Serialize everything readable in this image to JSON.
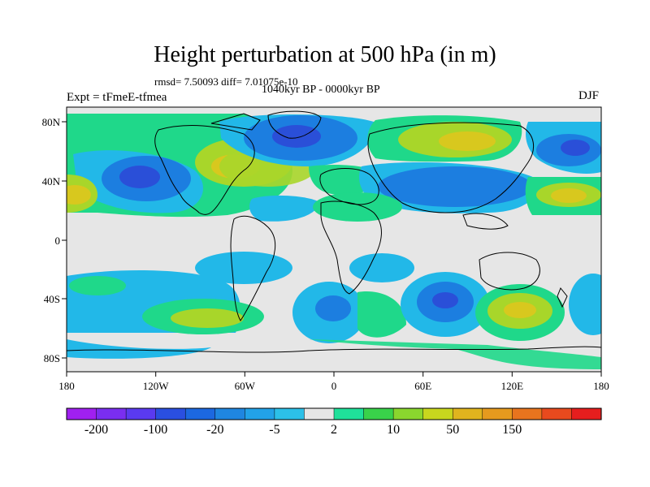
{
  "title": "Height perturbation at 500 hPa (in m)",
  "stats": "rmsd= 7.50093 diff= 7.01075e-10",
  "period": "1040kyr BP - 0000kyr BP",
  "experiment": "Expt = tFmeE-tfmea",
  "season": "DJF",
  "map": {
    "lat_ticks": [
      "80N",
      "40N",
      "0",
      "40S",
      "80S"
    ],
    "lon_ticks": [
      "180",
      "120W",
      "60W",
      "0",
      "60E",
      "120E",
      "180"
    ]
  },
  "colorbar": {
    "labels": [
      "-200",
      "-100",
      "-20",
      "-5",
      "2",
      "10",
      "50",
      "150"
    ],
    "colors": [
      "#a020f0",
      "#7a2ef0",
      "#5a3af0",
      "#2a4fe0",
      "#1c68e0",
      "#1f86e0",
      "#22a2e8",
      "#2cc0e8",
      "#e6e6e6",
      "#1fe09a",
      "#39d24a",
      "#8ad62e",
      "#c8d61e",
      "#e0b41e",
      "#e69a1e",
      "#e8741e",
      "#e84a1e",
      "#e61e1e"
    ]
  },
  "palette": {
    "land": "#000000",
    "neutral": "#e6e6e6",
    "light_blue": "#22b8e8",
    "mid_blue": "#1c7ee0",
    "deep_blue": "#2a4fd8",
    "green": "#1fd88a",
    "yellow_green": "#a8d62a",
    "yellow": "#d8c81e"
  }
}
